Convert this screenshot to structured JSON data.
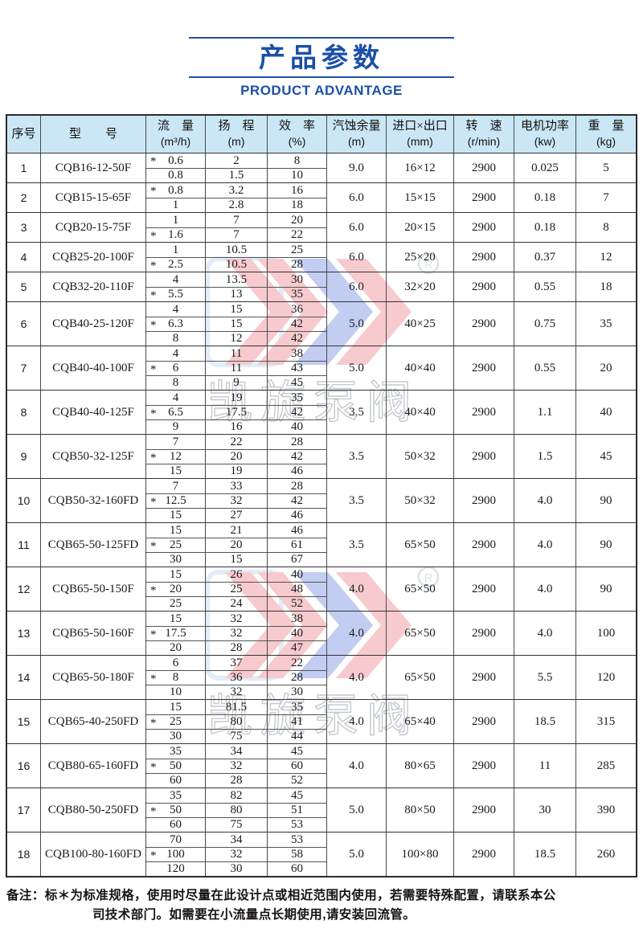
{
  "page": {
    "title": "产品参数",
    "subtitle": "PRODUCT ADVANTAGE"
  },
  "colors": {
    "accent_blue": "#1d4fa8",
    "header_bg": "#cbe7f6",
    "border_dark": "#2b2b2b",
    "watermark_red": "#e8525e",
    "watermark_blue": "#3b5bd6"
  },
  "watermark": {
    "registered_mark": "R",
    "brand_text": "凯旋泵阀"
  },
  "table": {
    "star_symbol": "*",
    "headers": [
      {
        "label": "序号",
        "unit": ""
      },
      {
        "label": "型　　号",
        "unit": ""
      },
      {
        "label": "流　量",
        "unit": "(m³/h)"
      },
      {
        "label": "扬　程",
        "unit": "(m)"
      },
      {
        "label": "效　率",
        "unit": "(%)"
      },
      {
        "label": "汽蚀余量",
        "unit": "(m)"
      },
      {
        "label": "进口×出口",
        "unit": "(mm)"
      },
      {
        "label": "转　速",
        "unit": "(r/min)"
      },
      {
        "label": "电机功率",
        "unit": "(kw)"
      },
      {
        "label": "重　量",
        "unit": "(kg)"
      }
    ],
    "rows": [
      {
        "no": "1",
        "model": "CQB16-12-50F",
        "sub": [
          {
            "flow": "0.6",
            "star": true,
            "head": "2",
            "eff": "8"
          },
          {
            "flow": "0.8",
            "star": false,
            "head": "1.5",
            "eff": "10"
          }
        ],
        "npsh": "9.0",
        "ports": "16×12",
        "speed": "2900",
        "power": "0.025",
        "weight": "5"
      },
      {
        "no": "2",
        "model": "CQB15-15-65F",
        "sub": [
          {
            "flow": "0.8",
            "star": true,
            "head": "3.2",
            "eff": "16"
          },
          {
            "flow": "1",
            "star": false,
            "head": "2.8",
            "eff": "18"
          }
        ],
        "npsh": "6.0",
        "ports": "15×15",
        "speed": "2900",
        "power": "0.18",
        "weight": "7"
      },
      {
        "no": "3",
        "model": "CQB20-15-75F",
        "sub": [
          {
            "flow": "1",
            "star": false,
            "head": "7",
            "eff": "20"
          },
          {
            "flow": "1.6",
            "star": true,
            "head": "7",
            "eff": "22"
          }
        ],
        "npsh": "6.0",
        "ports": "20×15",
        "speed": "2900",
        "power": "0.18",
        "weight": "8"
      },
      {
        "no": "4",
        "model": "CQB25-20-100F",
        "sub": [
          {
            "flow": "1",
            "star": false,
            "head": "10.5",
            "eff": "25"
          },
          {
            "flow": "2.5",
            "star": true,
            "head": "10.5",
            "eff": "28"
          }
        ],
        "npsh": "6.0",
        "ports": "25×20",
        "speed": "2900",
        "power": "0.37",
        "weight": "12"
      },
      {
        "no": "5",
        "model": "CQB32-20-110F",
        "sub": [
          {
            "flow": "4",
            "star": false,
            "head": "13.5",
            "eff": "30"
          },
          {
            "flow": "5.5",
            "star": true,
            "head": "13",
            "eff": "35"
          }
        ],
        "npsh": "6.0",
        "ports": "32×20",
        "speed": "2900",
        "power": "0.55",
        "weight": "18"
      },
      {
        "no": "6",
        "model": "CQB40-25-120F",
        "sub": [
          {
            "flow": "4",
            "star": false,
            "head": "15",
            "eff": "36"
          },
          {
            "flow": "6.3",
            "star": true,
            "head": "15",
            "eff": "42"
          },
          {
            "flow": "8",
            "star": false,
            "head": "12",
            "eff": "42"
          }
        ],
        "npsh": "5.0",
        "ports": "40×25",
        "speed": "2900",
        "power": "0.75",
        "weight": "35"
      },
      {
        "no": "7",
        "model": "CQB40-40-100F",
        "sub": [
          {
            "flow": "4",
            "star": false,
            "head": "11",
            "eff": "38"
          },
          {
            "flow": "6",
            "star": true,
            "head": "11",
            "eff": "43"
          },
          {
            "flow": "8",
            "star": false,
            "head": "9",
            "eff": "45"
          }
        ],
        "npsh": "5.0",
        "ports": "40×40",
        "speed": "2900",
        "power": "0.55",
        "weight": "20"
      },
      {
        "no": "8",
        "model": "CQB40-40-125F",
        "sub": [
          {
            "flow": "4",
            "star": false,
            "head": "19",
            "eff": "35"
          },
          {
            "flow": "6.5",
            "star": true,
            "head": "17.5",
            "eff": "42"
          },
          {
            "flow": "9",
            "star": false,
            "head": "16",
            "eff": "40"
          }
        ],
        "npsh": "3.5",
        "ports": "40×40",
        "speed": "2900",
        "power": "1.1",
        "weight": "40"
      },
      {
        "no": "9",
        "model": "CQB50-32-125F",
        "sub": [
          {
            "flow": "7",
            "star": false,
            "head": "22",
            "eff": "28"
          },
          {
            "flow": "12",
            "star": true,
            "head": "20",
            "eff": "42"
          },
          {
            "flow": "15",
            "star": false,
            "head": "19",
            "eff": "46"
          }
        ],
        "npsh": "3.5",
        "ports": "50×32",
        "speed": "2900",
        "power": "1.5",
        "weight": "45"
      },
      {
        "no": "10",
        "model": "CQB50-32-160FD",
        "sub": [
          {
            "flow": "7",
            "star": false,
            "head": "33",
            "eff": "28"
          },
          {
            "flow": "12.5",
            "star": true,
            "head": "32",
            "eff": "42"
          },
          {
            "flow": "15",
            "star": false,
            "head": "27",
            "eff": "46"
          }
        ],
        "npsh": "3.5",
        "ports": "50×32",
        "speed": "2900",
        "power": "4.0",
        "weight": "90"
      },
      {
        "no": "11",
        "model": "CQB65-50-125FD",
        "sub": [
          {
            "flow": "15",
            "star": false,
            "head": "21",
            "eff": "46"
          },
          {
            "flow": "25",
            "star": true,
            "head": "20",
            "eff": "61"
          },
          {
            "flow": "30",
            "star": false,
            "head": "15",
            "eff": "67"
          }
        ],
        "npsh": "3.5",
        "ports": "65×50",
        "speed": "2900",
        "power": "4.0",
        "weight": "90"
      },
      {
        "no": "12",
        "model": "CQB65-50-150F",
        "sub": [
          {
            "flow": "15",
            "star": false,
            "head": "26",
            "eff": "40"
          },
          {
            "flow": "20",
            "star": true,
            "head": "25",
            "eff": "48"
          },
          {
            "flow": "25",
            "star": false,
            "head": "24",
            "eff": "52"
          }
        ],
        "npsh": "4.0",
        "ports": "65×50",
        "speed": "2900",
        "power": "4.0",
        "weight": "90"
      },
      {
        "no": "13",
        "model": "CQB65-50-160F",
        "sub": [
          {
            "flow": "15",
            "star": false,
            "head": "32",
            "eff": "38"
          },
          {
            "flow": "17.5",
            "star": true,
            "head": "32",
            "eff": "40"
          },
          {
            "flow": "20",
            "star": false,
            "head": "28",
            "eff": "47"
          }
        ],
        "npsh": "4.0",
        "ports": "65×50",
        "speed": "2900",
        "power": "4.0",
        "weight": "100"
      },
      {
        "no": "14",
        "model": "CQB65-50-180F",
        "sub": [
          {
            "flow": "6",
            "star": false,
            "head": "37",
            "eff": "22"
          },
          {
            "flow": "8",
            "star": true,
            "head": "36",
            "eff": "28"
          },
          {
            "flow": "10",
            "star": false,
            "head": "32",
            "eff": "30"
          }
        ],
        "npsh": "4.0",
        "ports": "65×50",
        "speed": "2900",
        "power": "5.5",
        "weight": "120"
      },
      {
        "no": "15",
        "model": "CQB65-40-250FD",
        "sub": [
          {
            "flow": "15",
            "star": false,
            "head": "81.5",
            "eff": "35"
          },
          {
            "flow": "25",
            "star": true,
            "head": "80",
            "eff": "41"
          },
          {
            "flow": "30",
            "star": false,
            "head": "75",
            "eff": "44"
          }
        ],
        "npsh": "4.0",
        "ports": "65×40",
        "speed": "2900",
        "power": "18.5",
        "weight": "315"
      },
      {
        "no": "16",
        "model": "CQB80-65-160FD",
        "sub": [
          {
            "flow": "35",
            "star": false,
            "head": "34",
            "eff": "45"
          },
          {
            "flow": "50",
            "star": true,
            "head": "32",
            "eff": "60"
          },
          {
            "flow": "60",
            "star": false,
            "head": "28",
            "eff": "52"
          }
        ],
        "npsh": "4.0",
        "ports": "80×65",
        "speed": "2900",
        "power": "11",
        "weight": "285"
      },
      {
        "no": "17",
        "model": "CQB80-50-250FD",
        "sub": [
          {
            "flow": "35",
            "star": false,
            "head": "82",
            "eff": "45"
          },
          {
            "flow": "50",
            "star": true,
            "head": "80",
            "eff": "51"
          },
          {
            "flow": "60",
            "star": false,
            "head": "75",
            "eff": "53"
          }
        ],
        "npsh": "5.0",
        "ports": "80×50",
        "speed": "2900",
        "power": "30",
        "weight": "390"
      },
      {
        "no": "18",
        "model": "CQB100-80-160FD",
        "sub": [
          {
            "flow": "70",
            "star": false,
            "head": "34",
            "eff": "53"
          },
          {
            "flow": "100",
            "star": true,
            "head": "32",
            "eff": "58"
          },
          {
            "flow": "120",
            "star": false,
            "head": "30",
            "eff": "60"
          }
        ],
        "npsh": "5.0",
        "ports": "100×80",
        "speed": "2900",
        "power": "18.5",
        "weight": "260"
      }
    ]
  },
  "note": {
    "line1": "备注：标＊为标准规格，使用时尽量在此设计点或相近范围内使用，若需要特殊配置，请联系本公",
    "line2": "司技术部门。如需要在小流量点长期使用,请安装回流管。"
  }
}
